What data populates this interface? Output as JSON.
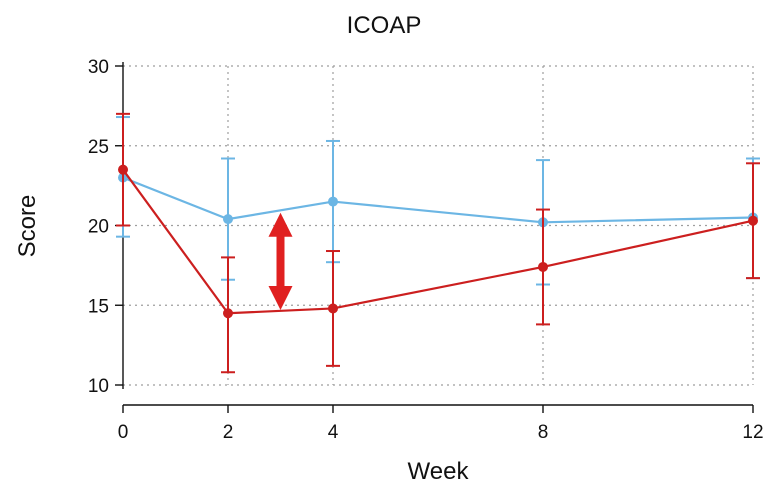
{
  "chart_data": {
    "type": "line",
    "title": "ICOAP",
    "xlabel": "Week",
    "ylabel": "Score",
    "x": [
      0,
      2,
      4,
      8,
      12
    ],
    "x_ticks": [
      "0",
      "2",
      "4",
      "8",
      "12"
    ],
    "y_ticks": [
      "10",
      "15",
      "20",
      "25",
      "30"
    ],
    "xlim": [
      0,
      12
    ],
    "ylim": [
      10,
      30
    ],
    "grid": true,
    "series": [
      {
        "color": "#6cb6e4",
        "values": [
          23.0,
          20.4,
          21.5,
          20.2,
          20.5
        ],
        "lower": [
          19.3,
          16.6,
          17.7,
          16.3,
          16.7
        ],
        "upper": [
          26.8,
          24.2,
          25.3,
          24.1,
          24.2
        ]
      },
      {
        "color": "#cc1f1f",
        "values": [
          23.5,
          14.5,
          14.8,
          17.4,
          20.3
        ],
        "lower": [
          20.0,
          10.8,
          11.2,
          13.8,
          16.7
        ],
        "upper": [
          27.0,
          18.0,
          18.4,
          21.0,
          23.9
        ]
      }
    ],
    "annotation": {
      "type": "double-arrow",
      "color": "#e02020",
      "x": 3,
      "y_from": 14.7,
      "y_to": 20.8
    }
  }
}
